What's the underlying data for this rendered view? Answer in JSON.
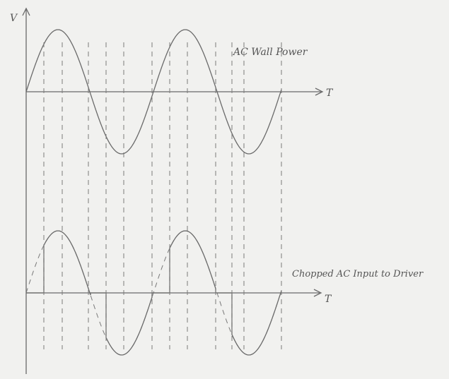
{
  "axes": {
    "vertical_label": "V",
    "top_horizontal_label": "T",
    "bottom_horizontal_label": "T"
  },
  "waveforms": {
    "top_label": "AC Wall Power",
    "bottom_label": "Chopped AC Input to Driver"
  }
}
